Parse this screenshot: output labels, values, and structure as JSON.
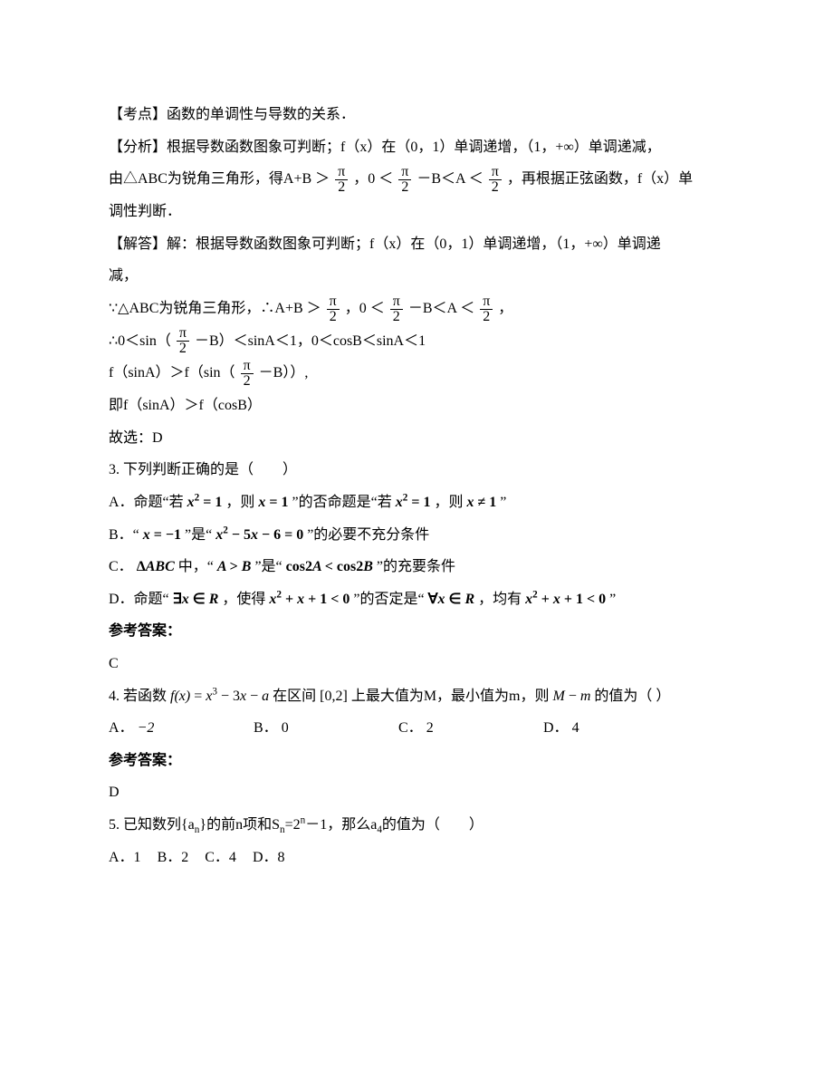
{
  "solution2": {
    "kaodian_label": "【考点】",
    "kaodian_text": "函数的单调性与导数的关系．",
    "fenxi_label": "【分析】",
    "fenxi_l1a": "根据导数函数图象可判断；f（x）在（0，1）单调递增，（1，+∞）单调递减，",
    "fenxi_l2a": "由△ABC为锐角三角形，得A+B",
    "fenxi_l2b": "，0",
    "fenxi_l2c": "－B＜A",
    "fenxi_l2d": "，再根据正弦函数，f（x）单",
    "fenxi_l3": "调性判断．",
    "jieda_label": "【解答】",
    "jieda_l1a": "解：根据导数函数图象可判断；f（x）在（0，1）单调递增，（1，+∞）单调递",
    "jieda_l1b": "减，",
    "jieda_l2a": "∵△ABC为锐角三角形，∴A+B",
    "jieda_l2b": "，0",
    "jieda_l2c": "－B＜A",
    "jieda_l2d": "，",
    "jieda_l3a": "∴0＜sin（",
    "jieda_l3b": "－B）＜sinA＜1，0＜cosB＜sinA＜1",
    "jieda_l4a": "f（sinA）＞f（sin（",
    "jieda_l4b": "－B））,",
    "jieda_l5": "即f（sinA）＞f（cosB）",
    "jieda_l6": "故选：D",
    "frac_num": "π",
    "frac_den": "2",
    "gt": "＞",
    "lt": "＜"
  },
  "q3": {
    "stem": "3. 下列判断正确的是（　　）",
    "A_pre": "A．命题“若",
    "A_m1": "x² = 1",
    "A_mid": "，则",
    "A_m2": "x = 1",
    "A_mid2": "”的否命题是“若",
    "A_m3": "x² = 1",
    "A_mid3": "，则",
    "A_m4": "x ≠ 1",
    "A_end": "”",
    "B_pre": "B．“",
    "B_m1": "x = −1",
    "B_mid": "”是“",
    "B_m2": "x² − 5x − 6 = 0",
    "B_end": "”的必要不充分条件",
    "C_pre": "C．",
    "C_m1": "ΔABC",
    "C_mid": " 中，“",
    "C_m2": "A > B",
    "C_mid2": "”是“",
    "C_m3": "cos2A < cos2B",
    "C_end": "”的充要条件",
    "D_pre": "D．命题“",
    "D_m1": "∃x ∈ R",
    "D_mid": "，使得",
    "D_m2": "x² + x + 1 < 0",
    "D_mid2": "”的否定是“",
    "D_m3": "∀x ∈ R",
    "D_mid3": "，均有",
    "D_m4": "x² + x + 1 < 0",
    "D_end": "”",
    "answer_hd": "参考答案：",
    "answer": "C"
  },
  "q4": {
    "stem_a": "4. 若函数",
    "fn": "f(x) = x³ − 3x − a",
    "stem_b": " 在区间",
    "interval": "[0,2]",
    "stem_c": "上最大值为M，最小值为m，则",
    "expr": "M − m",
    "stem_d": "的值为（  ）",
    "A_label": "A．",
    "A_val": "−2",
    "B_label": "B．",
    "B_val": "0",
    "C_label": "C．",
    "C_val": "2",
    "D_label": "D．",
    "D_val": "4",
    "answer_hd": "参考答案：",
    "answer": "D"
  },
  "q5": {
    "stem_a": "5. 已知数列{a",
    "sub_n": "n",
    "stem_b": "}的前n项和S",
    "stem_c": "=2",
    "sup_n": "n",
    "stem_d": "－1，那么a",
    "sub_4": "4",
    "stem_e": "的值为（　　）",
    "A": "A．1",
    "B": "B．2",
    "C": "C．4",
    "D": "D．8"
  },
  "colors": {
    "text": "#000000",
    "bg": "#ffffff"
  }
}
